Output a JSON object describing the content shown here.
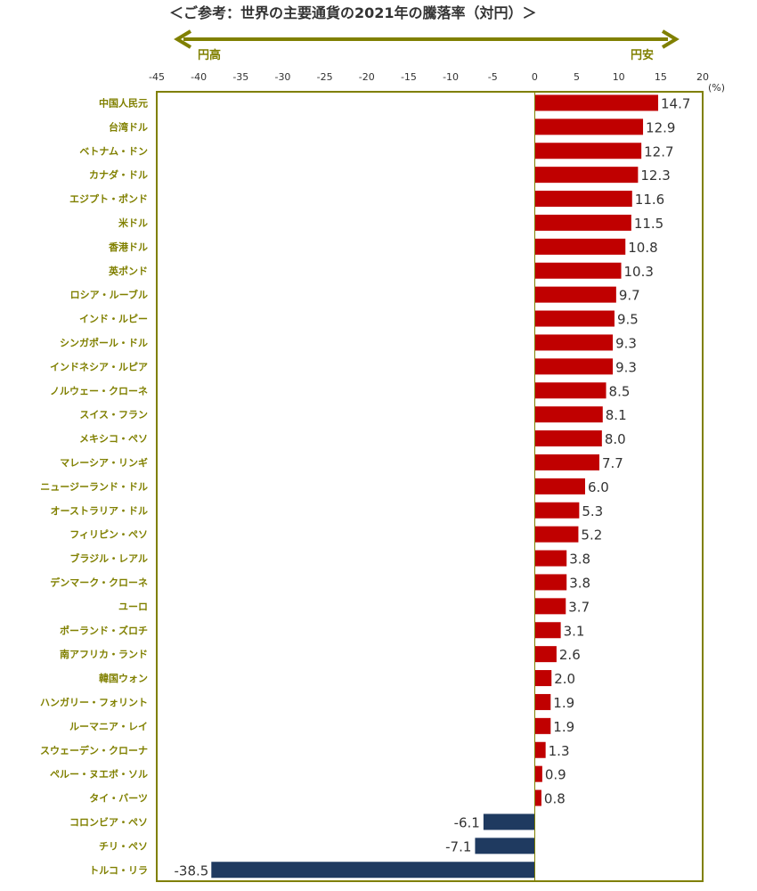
{
  "header": {
    "title": "＜ご参考：世界の主要通貨の2021年の騰落率（対円）＞",
    "left_direction": "円高",
    "right_direction": "円安",
    "unit": "(%)"
  },
  "colors": {
    "positive_bar": "#c00000",
    "negative_bar": "#1f3a60",
    "frame": "#808000",
    "arrow": "#808000"
  },
  "chart_data": {
    "type": "bar",
    "orientation": "horizontal",
    "title": "＜ご参考：世界の主要通貨の2021年の騰落率（対円）＞",
    "xlabel": "(%)",
    "ylabel": "",
    "xlim": [
      -45,
      20
    ],
    "xticks": [
      "-45",
      "-40",
      "-35",
      "-30",
      "-25",
      "-20",
      "-15",
      "-10",
      "-5",
      "0",
      "5",
      "10",
      "15",
      "20"
    ],
    "grid": false,
    "legend": "none",
    "categories": [
      "中国人民元",
      "台湾ドル",
      "ベトナム・ドン",
      "カナダ・ドル",
      "エジプト・ポンド",
      "米ドル",
      "香港ドル",
      "英ポンド",
      "ロシア・ルーブル",
      "インド・ルピー",
      "シンガポール・ドル",
      "インドネシア・ルピア",
      "ノルウェー・クローネ",
      "スイス・フラン",
      "メキシコ・ペソ",
      "マレーシア・リンギ",
      "ニュージーランド・ドル",
      "オーストラリア・ドル",
      "フィリピン・ペソ",
      "ブラジル・レアル",
      "デンマーク・クローネ",
      "ユーロ",
      "ポーランド・ズロチ",
      "南アフリカ・ランド",
      "韓国ウォン",
      "ハンガリー・フォリント",
      "ルーマニア・レイ",
      "スウェーデン・クローナ",
      "ペルー・ヌエボ・ソル",
      "タイ・バーツ",
      "コロンビア・ペソ",
      "チリ・ペソ",
      "トルコ・リラ"
    ],
    "values": [
      14.7,
      12.9,
      12.7,
      12.3,
      11.6,
      11.5,
      10.8,
      10.3,
      9.7,
      9.5,
      9.3,
      9.3,
      8.5,
      8.1,
      8.0,
      7.7,
      6.0,
      5.3,
      5.2,
      3.8,
      3.8,
      3.7,
      3.1,
      2.6,
      2.0,
      1.9,
      1.9,
      1.3,
      0.9,
      0.8,
      -6.1,
      -7.1,
      -38.5
    ],
    "value_labels": [
      "14.7",
      "12.9",
      "12.7",
      "12.3",
      "11.6",
      "11.5",
      "10.8",
      "10.3",
      "9.7",
      "9.5",
      "9.3",
      "9.3",
      "8.5",
      "8.1",
      "8.0",
      "7.7",
      "6.0",
      "5.3",
      "5.2",
      "3.8",
      "3.8",
      "3.7",
      "3.1",
      "2.6",
      "2.0",
      "1.9",
      "1.9",
      "1.3",
      "0.9",
      "0.8",
      "-6.1",
      "-7.1",
      "-38.5"
    ]
  }
}
